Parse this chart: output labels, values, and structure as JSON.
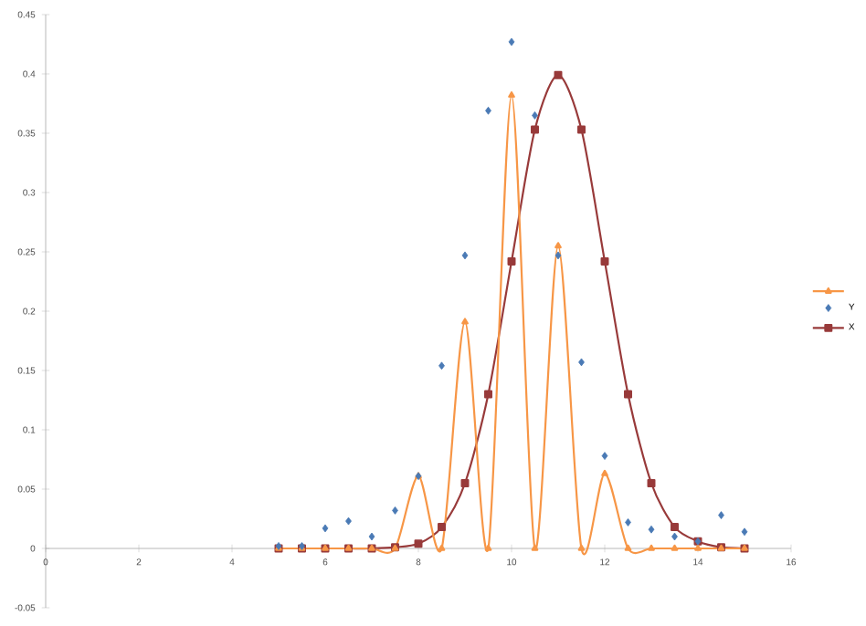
{
  "chart_data": {
    "type": "line",
    "x": [
      5,
      5.5,
      6,
      6.5,
      7,
      7.5,
      8,
      8.5,
      9,
      9.5,
      10,
      10.5,
      11,
      11.5,
      12,
      12.5,
      13,
      13.5,
      14,
      14.5,
      15
    ],
    "series": [
      {
        "color": "#f79646",
        "marker": "triangle",
        "values": [
          0,
          0,
          0,
          0,
          0,
          0,
          0.061,
          0,
          0.191,
          0,
          0.382,
          0,
          0.255,
          0,
          0.063,
          0,
          0,
          0,
          0,
          0,
          0
        ]
      },
      {
        "type": "scatter",
        "name": "Y",
        "color": "#4a7ab5",
        "marker": "diamond",
        "values": [
          0.002,
          0.002,
          0.017,
          0.023,
          0.01,
          0.032,
          0.061,
          0.154,
          0.247,
          0.369,
          0.427,
          0.365,
          0.247,
          0.157,
          0.078,
          0.022,
          0.016,
          0.01,
          0.006,
          0.028,
          0.014
        ]
      },
      {
        "type": "line",
        "name": "X",
        "color": "#983a3a",
        "marker": "square",
        "values": [
          0,
          0,
          0,
          0,
          0,
          0.001,
          0.004,
          0.018,
          0.055,
          0.13,
          0.242,
          0.353,
          0.399,
          0.353,
          0.242,
          0.13,
          0.055,
          0.018,
          0.006,
          0.001,
          0
        ]
      }
    ],
    "xlim": [
      0,
      16
    ],
    "xticks": [
      0,
      2,
      4,
      6,
      8,
      10,
      12,
      14,
      16
    ],
    "ylim": [
      -0.05,
      0.45
    ],
    "yticks": [
      -0.05,
      0,
      0.05,
      0.1,
      0.15,
      0.2,
      0.25,
      0.3,
      0.35,
      0.4,
      0.45
    ],
    "grid": false,
    "legend": "right"
  }
}
